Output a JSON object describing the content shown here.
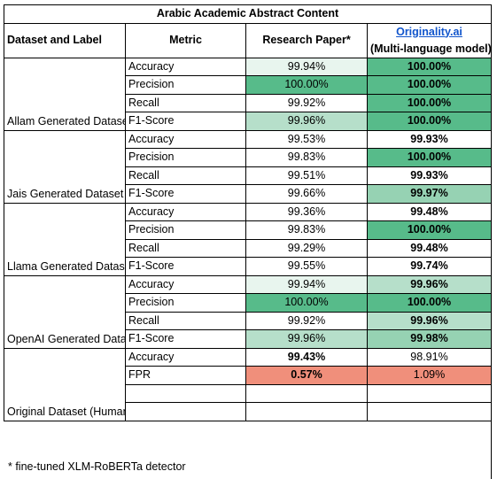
{
  "title": "Arabic Academic Abstract Content",
  "headers": {
    "dataset_label": "Dataset and Label",
    "metric": "Metric",
    "research_paper": "Research Paper*",
    "originality_link": "Originality.ai",
    "originality_sub": "(Multi-language model)"
  },
  "groups": [
    {
      "name": "Allam Generated Dataset (AI)",
      "rows": [
        {
          "metric": "Accuracy",
          "paper": "99.94%",
          "orig": "100.00%"
        },
        {
          "metric": "Precision",
          "paper": "100.00%",
          "orig": "100.00%"
        },
        {
          "metric": "Recall",
          "paper": "99.92%",
          "orig": "100.00%"
        },
        {
          "metric": "F1-Score",
          "paper": "99.96%",
          "orig": "100.00%"
        }
      ]
    },
    {
      "name": "Jais Generated Dataset (AI)",
      "rows": [
        {
          "metric": "Accuracy",
          "paper": "99.53%",
          "orig": "99.93%"
        },
        {
          "metric": "Precision",
          "paper": "99.83%",
          "orig": "100.00%"
        },
        {
          "metric": "Recall",
          "paper": "99.51%",
          "orig": "99.93%"
        },
        {
          "metric": "F1-Score",
          "paper": "99.66%",
          "orig": "99.97%"
        }
      ]
    },
    {
      "name": "Llama Generated Dataset (AI)",
      "rows": [
        {
          "metric": "Accuracy",
          "paper": "99.36%",
          "orig": "99.48%"
        },
        {
          "metric": "Precision",
          "paper": "99.83%",
          "orig": "100.00%"
        },
        {
          "metric": "Recall",
          "paper": "99.29%",
          "orig": "99.48%"
        },
        {
          "metric": "F1-Score",
          "paper": "99.55%",
          "orig": "99.74%"
        }
      ]
    },
    {
      "name": "OpenAI Generated Dataset (AI)",
      "rows": [
        {
          "metric": "Accuracy",
          "paper": "99.94%",
          "orig": "99.96%"
        },
        {
          "metric": "Precision",
          "paper": "100.00%",
          "orig": "100.00%"
        },
        {
          "metric": "Recall",
          "paper": "99.92%",
          "orig": "99.96%"
        },
        {
          "metric": "F1-Score",
          "paper": "99.96%",
          "orig": "99.98%"
        }
      ]
    },
    {
      "name": "Original Dataset (Human)",
      "rows": [
        {
          "metric": "Accuracy",
          "paper": "99.43%",
          "orig": "98.91%"
        },
        {
          "metric": "FPR",
          "paper": "0.57%",
          "orig": "1.09%"
        },
        {
          "metric": "",
          "paper": "",
          "orig": ""
        },
        {
          "metric": "",
          "paper": "",
          "orig": ""
        }
      ]
    }
  ],
  "footnote": "* fine-tuned XLM-RoBERTa detector",
  "colors": {
    "green_dark": "#57bb8a",
    "green_medium": "#96d2b3",
    "green_light": "#b6dfca",
    "green_pale": "#e8f5ee",
    "red": "#f08f7b",
    "link": "#1155cc"
  }
}
